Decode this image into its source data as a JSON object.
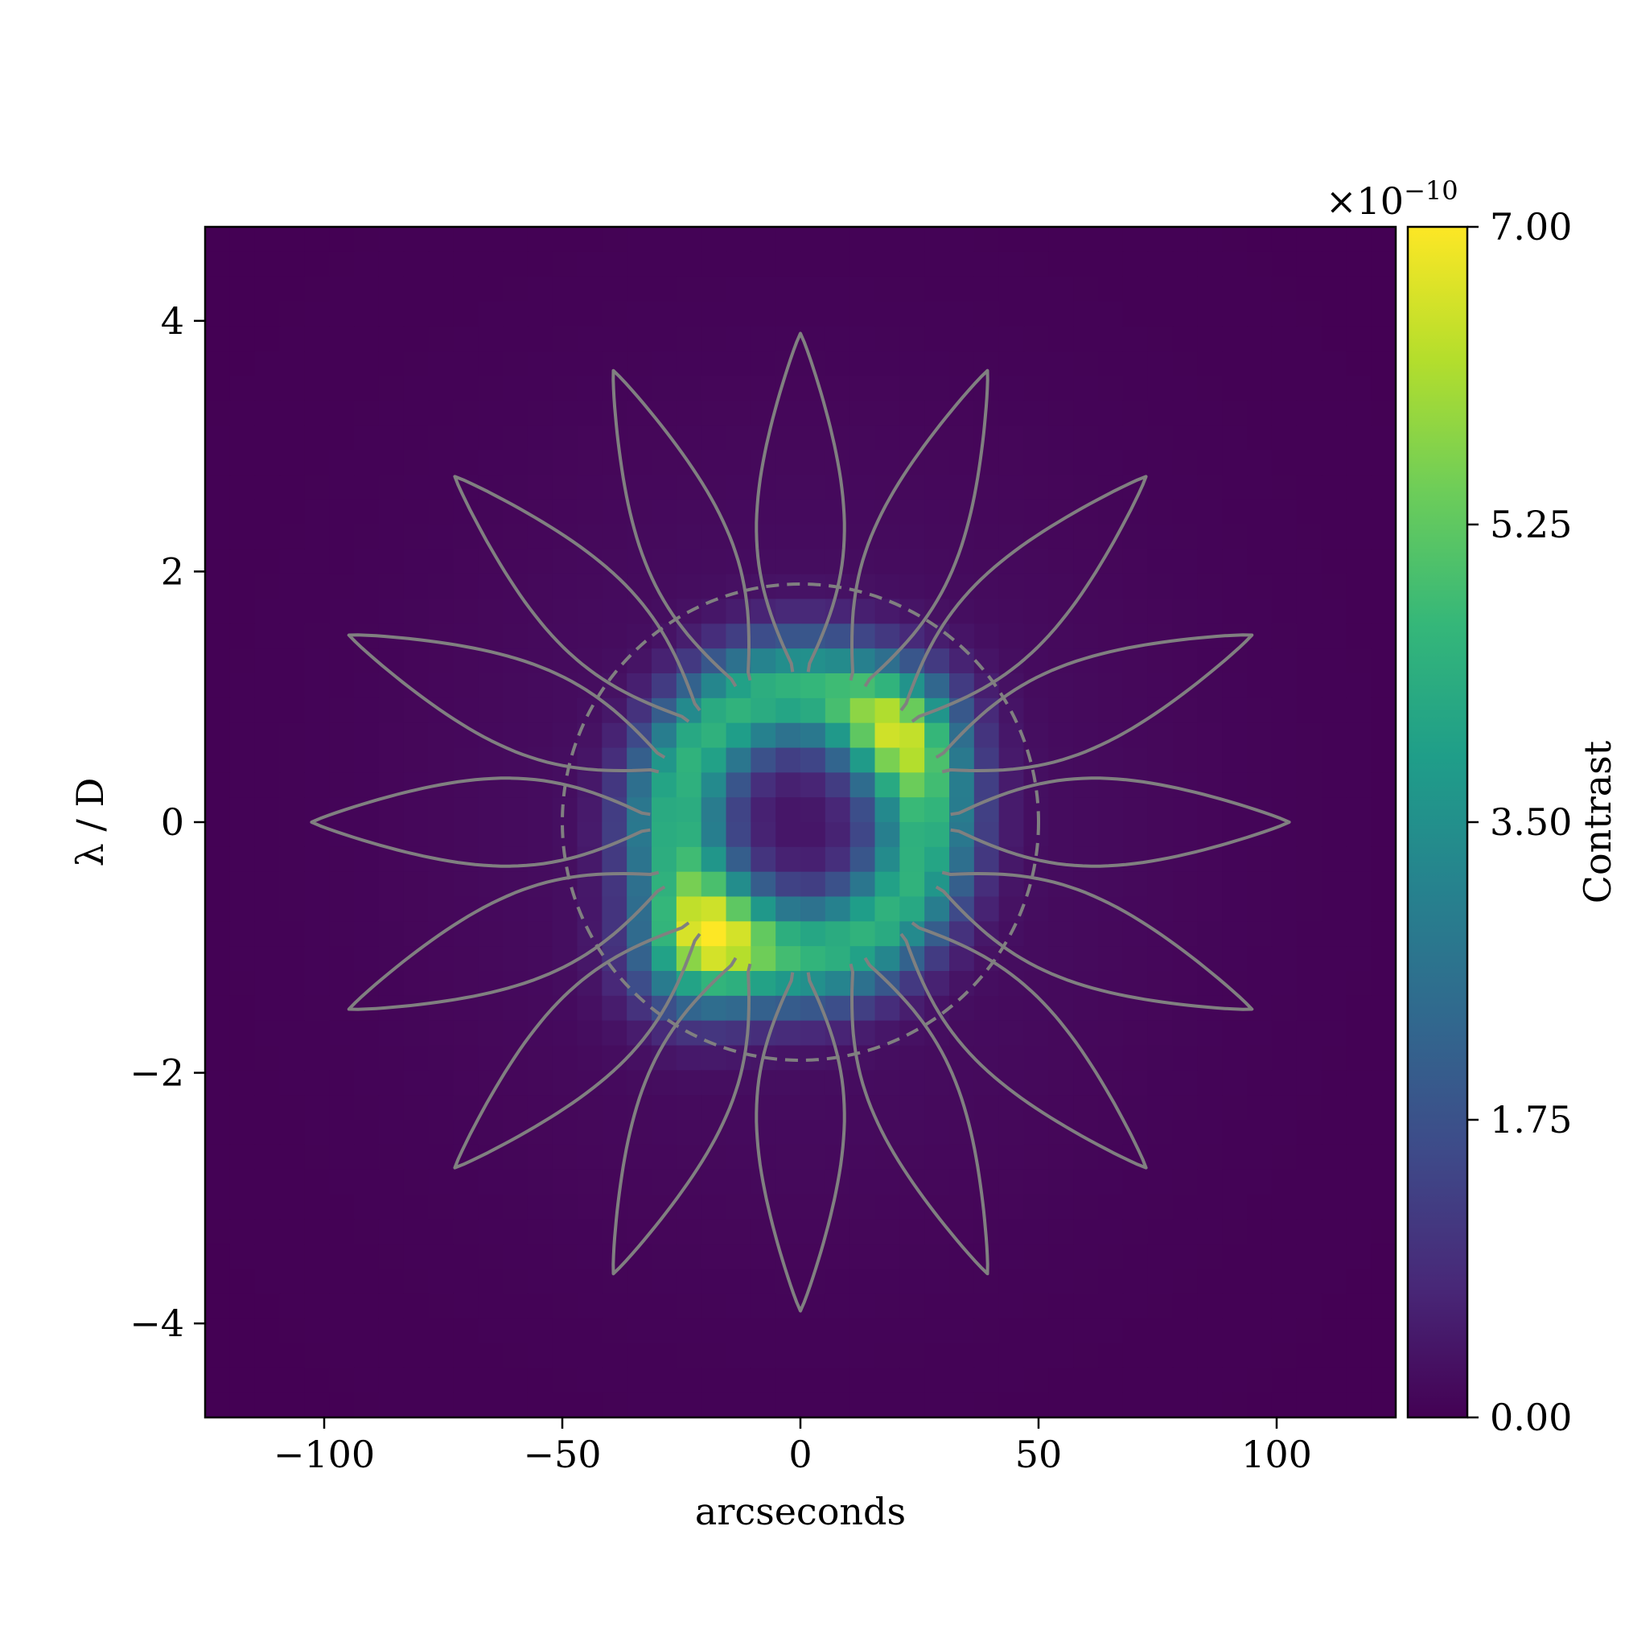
{
  "chart_data": {
    "type": "heatmap",
    "title": "",
    "xlabel": "arcseconds",
    "ylabel": "λ / D",
    "xlim": [
      -125,
      125
    ],
    "ylim": [
      -4.75,
      4.75
    ],
    "x_ticks": [
      -100,
      -50,
      0,
      50,
      100
    ],
    "x_tick_labels": [
      "−100",
      "−50",
      "0",
      "50",
      "100"
    ],
    "y_ticks": [
      -4,
      -2,
      0,
      2,
      4
    ],
    "y_tick_labels": [
      "−4",
      "−2",
      "0",
      "2",
      "4"
    ],
    "colormap": "viridis",
    "colorbar": {
      "label": "Contrast",
      "range": [
        0,
        7.0
      ],
      "ticks": [
        0,
        1.75,
        3.5,
        5.25,
        7.0
      ],
      "tick_labels": [
        "0.00",
        "1.75",
        "3.50",
        "5.25",
        "7.00"
      ],
      "scale_label": "×10",
      "scale_exponent": "−10"
    },
    "grid": false,
    "image_grid": {
      "size": 48,
      "description": "ring of excess contrast around center, peak near (-20 arcsec, -1.1 λ/D), secondary arc on right",
      "features": [
        {
          "type": "ring",
          "x_center": 0,
          "y_center": 0,
          "radius_x": 26,
          "radius_y": 1.05,
          "peak": 4.2
        },
        {
          "type": "blob",
          "x": -22,
          "y": -1.05,
          "peak": 7.0
        },
        {
          "type": "blob",
          "x": 22,
          "y": 0.75,
          "peak": 5.6
        }
      ]
    },
    "overlay": {
      "starshade_petals": 16,
      "petal_tip_radius": 3.9,
      "petal_inner_radius": 1.2,
      "inner_working_angle_circle_radius": 1.9,
      "color": "#808080"
    }
  }
}
